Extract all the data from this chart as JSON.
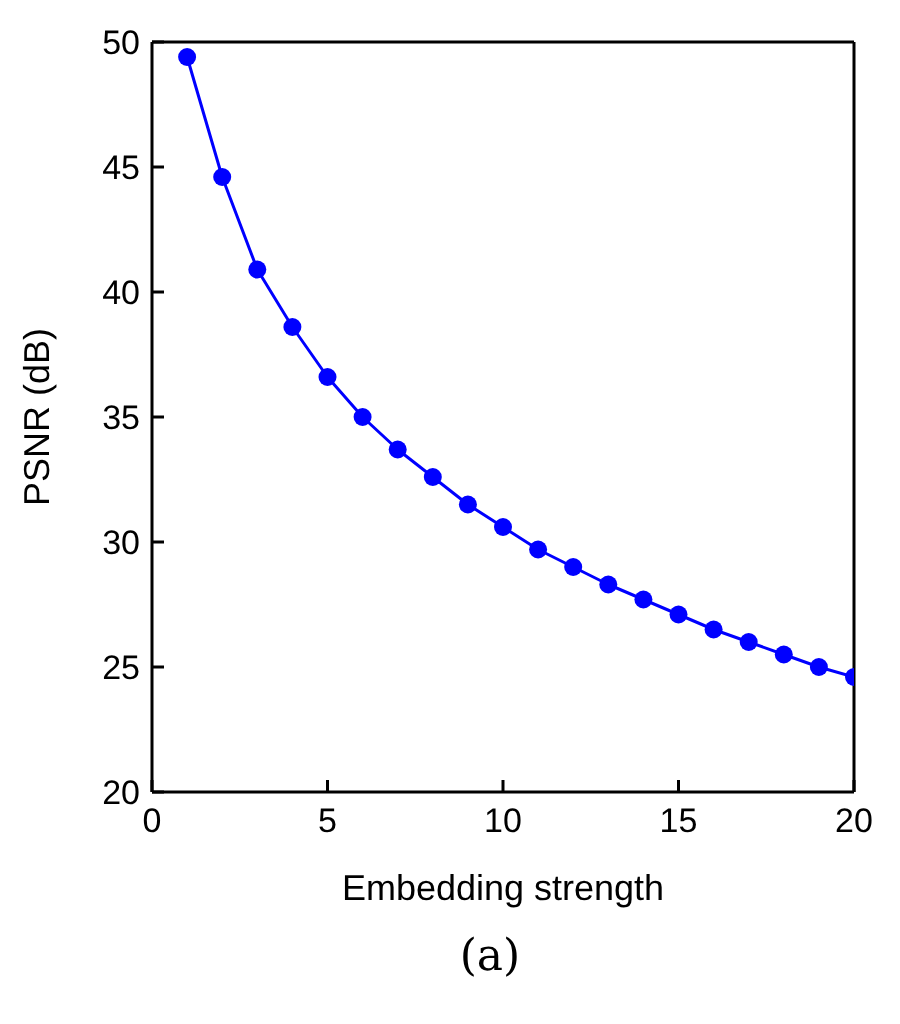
{
  "chart_data": {
    "type": "line",
    "xlabel": "Embedding strength",
    "ylabel": "PSNR (dB)",
    "annotations": [
      "(a)"
    ],
    "x": [
      1,
      2,
      3,
      4,
      5,
      6,
      7,
      8,
      9,
      10,
      11,
      12,
      13,
      14,
      15,
      16,
      17,
      18,
      19,
      20
    ],
    "series": [
      {
        "color": "#0000ff",
        "values": [
          49.4,
          44.6,
          40.9,
          38.6,
          36.6,
          35.0,
          33.7,
          32.6,
          31.5,
          30.6,
          29.7,
          29.0,
          28.3,
          27.7,
          27.1,
          26.5,
          26.0,
          25.5,
          25.0,
          24.6
        ]
      }
    ],
    "xlim": [
      0,
      20
    ],
    "xticks": [
      0,
      5,
      10,
      15,
      20
    ],
    "ylim": [
      20,
      50
    ],
    "yticks": [
      20,
      25,
      30,
      35,
      40,
      45,
      50
    ],
    "grid": false,
    "legend": false,
    "marker": "circle",
    "line_style": "solid"
  }
}
